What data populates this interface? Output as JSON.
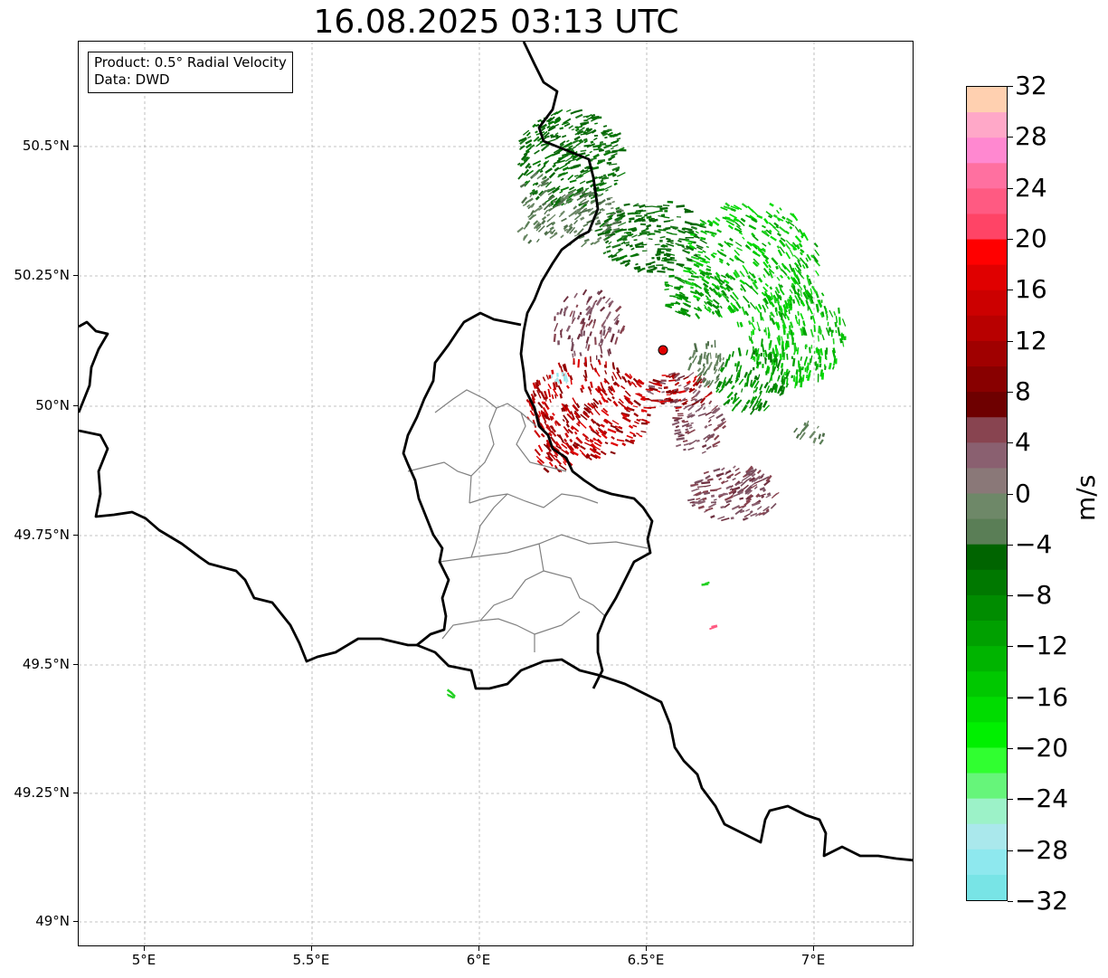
{
  "title": "16.08.2025 03:13 UTC",
  "info_box": {
    "product_line": "Product: 0.5° Radial Velocity",
    "data_line": "Data: DWD"
  },
  "map": {
    "lon_range": [
      4.8,
      7.3
    ],
    "lat_range": [
      48.95,
      50.7
    ],
    "y_ticks": [
      "50.5°N",
      "50.25°N",
      "50°N",
      "49.75°N",
      "49.5°N",
      "49.25°N",
      "49°N"
    ],
    "x_ticks": [
      "5°E",
      "5.5°E",
      "6°E",
      "6.5°E",
      "7°E"
    ],
    "grid": "dashed",
    "radar_site_color": "#e00000",
    "radar_site_lon": 6.55,
    "radar_site_lat": 50.11
  },
  "colorbar": {
    "unit": "m/s",
    "range": [
      -32,
      32
    ],
    "tick_labels": [
      "32",
      "28",
      "24",
      "20",
      "16",
      "12",
      "8",
      "4",
      "0",
      "−4",
      "−8",
      "−12",
      "−16",
      "−20",
      "−24",
      "−28",
      "−32"
    ],
    "colors_top_to_bottom": [
      "#ffd0b0",
      "#ffa8c8",
      "#ff88d0",
      "#ff70a0",
      "#ff5a82",
      "#ff4466",
      "#ff0000",
      "#e00000",
      "#cc0000",
      "#b80000",
      "#a00000",
      "#880000",
      "#6e0000",
      "#884450",
      "#8a6070",
      "#8a7878",
      "#6e8868",
      "#5a7e56",
      "#006400",
      "#007800",
      "#008c00",
      "#00a000",
      "#00b400",
      "#00c800",
      "#00dc00",
      "#00f000",
      "#30ff30",
      "#66f57a",
      "#9cf2c8",
      "#aae8ec",
      "#8ee8ee",
      "#78e4e6"
    ]
  }
}
